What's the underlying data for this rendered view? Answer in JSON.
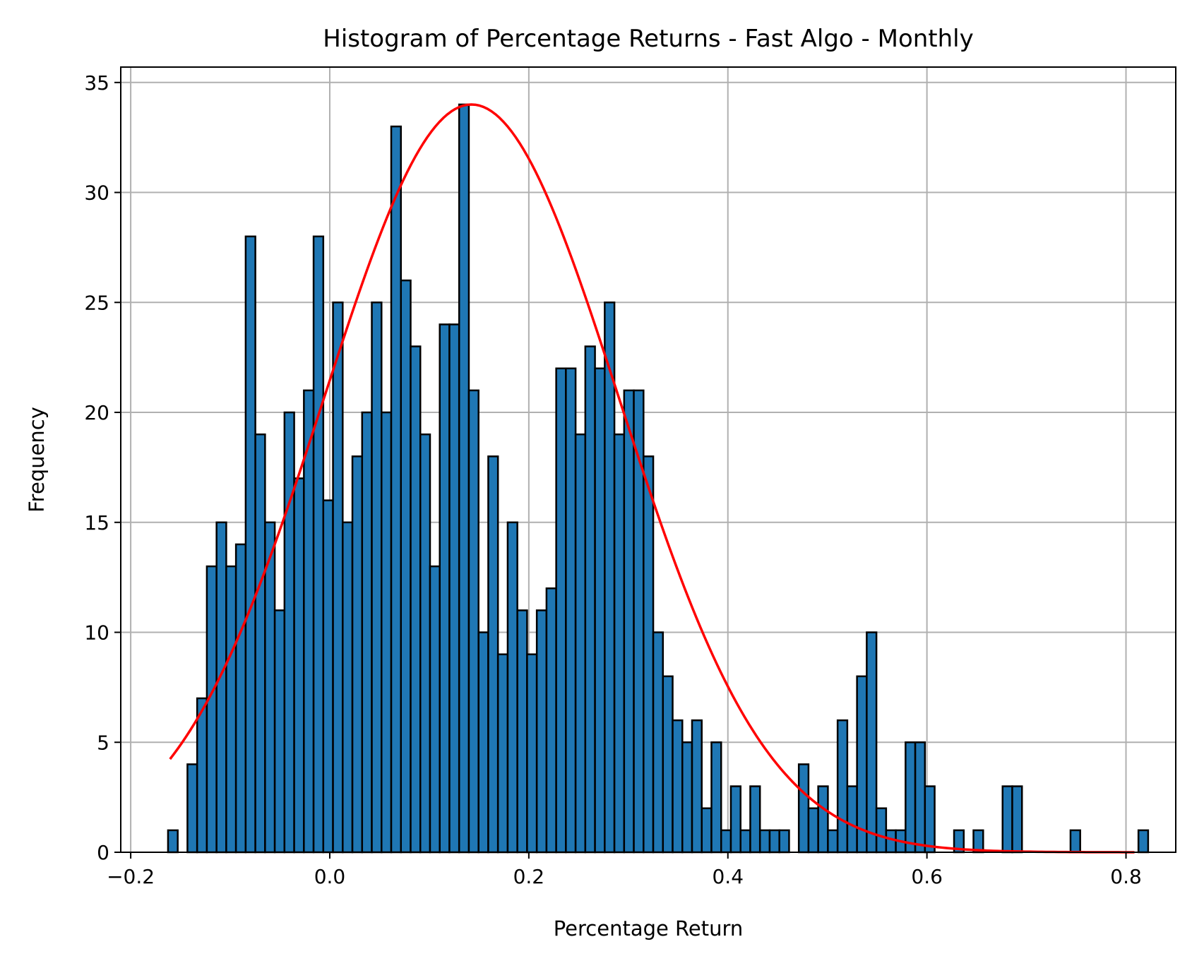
{
  "chart_data": {
    "type": "bar",
    "title": "Histogram of Percentage Returns - Fast Algo - Monthly",
    "xlabel": "Percentage Return",
    "ylabel": "Frequency",
    "xlim": [
      -0.21,
      0.85
    ],
    "ylim": [
      0,
      35.7
    ],
    "x_ticks": [
      {
        "value": -0.2,
        "label": "−0.2"
      },
      {
        "value": 0.0,
        "label": "0.0"
      },
      {
        "value": 0.2,
        "label": "0.2"
      },
      {
        "value": 0.4,
        "label": "0.4"
      },
      {
        "value": 0.6,
        "label": "0.6"
      },
      {
        "value": 0.8,
        "label": "0.8"
      }
    ],
    "y_ticks": [
      {
        "value": 0,
        "label": "0"
      },
      {
        "value": 5,
        "label": "5"
      },
      {
        "value": 10,
        "label": "10"
      },
      {
        "value": 15,
        "label": "15"
      },
      {
        "value": 20,
        "label": "20"
      },
      {
        "value": 25,
        "label": "25"
      },
      {
        "value": 30,
        "label": "30"
      },
      {
        "value": 35,
        "label": "35"
      }
    ],
    "grid": true,
    "bins": {
      "start": -0.1625,
      "width": 0.00975,
      "counts": [
        1,
        0,
        4,
        7,
        13,
        15,
        13,
        14,
        28,
        19,
        15,
        11,
        20,
        17,
        21,
        28,
        16,
        25,
        15,
        18,
        20,
        25,
        20,
        33,
        26,
        23,
        19,
        13,
        24,
        24,
        34,
        21,
        10,
        18,
        9,
        15,
        11,
        9,
        11,
        12,
        22,
        22,
        19,
        23,
        22,
        25,
        19,
        21,
        21,
        18,
        10,
        8,
        6,
        5,
        6,
        2,
        5,
        1,
        3,
        1,
        3,
        1,
        1,
        1,
        0,
        4,
        2,
        3,
        1,
        6,
        3,
        8,
        10,
        2,
        1,
        1,
        5,
        5,
        3,
        0,
        0,
        1,
        0,
        1,
        0,
        0,
        3,
        3,
        0,
        0,
        0,
        0,
        0,
        1,
        0,
        0,
        0,
        0,
        0,
        0,
        1,
        0
      ]
    },
    "bar_color": "#1f77b4",
    "bar_edge_color": "#000000",
    "series": [
      {
        "type": "line",
        "color": "#ff0000",
        "x_range": [
          -0.1605,
          0.8085
        ],
        "curve": {
          "kind": "normal",
          "mean": 0.1424,
          "std": 0.1484,
          "peak": 34.0
        }
      }
    ]
  }
}
